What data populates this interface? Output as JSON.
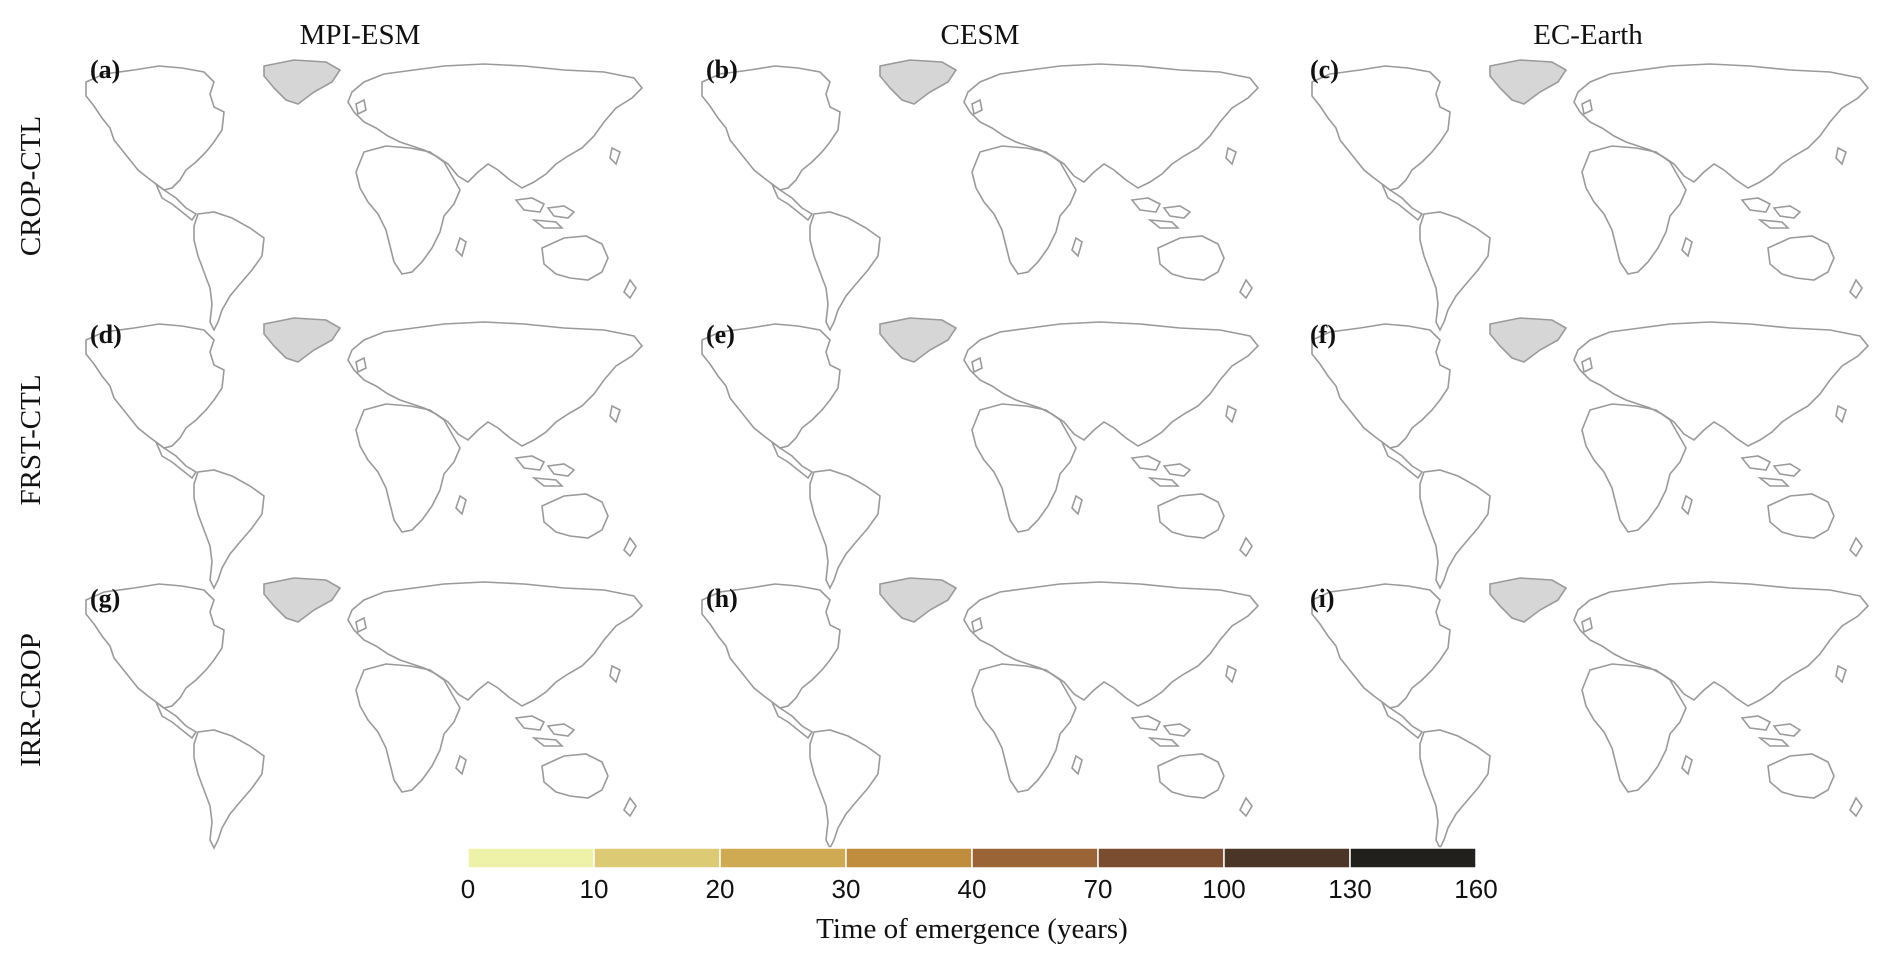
{
  "figure": {
    "column_titles": [
      "MPI-ESM",
      "CESM",
      "EC-Earth"
    ],
    "row_labels": [
      "CROP-CTL",
      "FRST-CTL",
      "IRR-CROP"
    ],
    "panel_labels": [
      "(a)",
      "(b)",
      "(c)",
      "(d)",
      "(e)",
      "(f)",
      "(g)",
      "(h)",
      "(i)"
    ]
  },
  "colorbar": {
    "title": "Time of emergence (years)",
    "bins": [
      {
        "from": 0,
        "to": 10,
        "color": "#eef2a8"
      },
      {
        "from": 10,
        "to": 20,
        "color": "#dcca74"
      },
      {
        "from": 20,
        "to": 30,
        "color": "#cfaa52"
      },
      {
        "from": 30,
        "to": 40,
        "color": "#c08d3e"
      },
      {
        "from": 40,
        "to": 70,
        "color": "#9b6436"
      },
      {
        "from": 70,
        "to": 100,
        "color": "#7a4c30"
      },
      {
        "from": 100,
        "to": 130,
        "color": "#4a3526"
      },
      {
        "from": 130,
        "to": 160,
        "color": "#22201c"
      }
    ],
    "tick_labels": [
      "0",
      "10",
      "20",
      "30",
      "40",
      "70",
      "100",
      "130",
      "160"
    ]
  },
  "colors": {
    "ice": "#d6d6d6",
    "coastline": "#9a9a9a",
    "no_data": "#bdbdbd"
  }
}
